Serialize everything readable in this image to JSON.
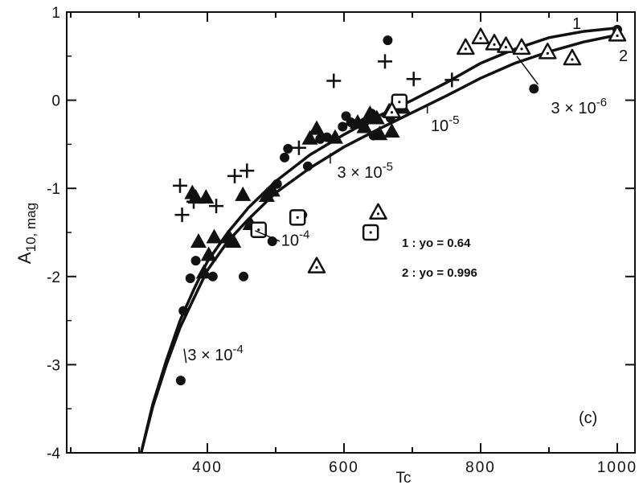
{
  "chart_data": {
    "type": "scatter",
    "xlabel": "Tc",
    "ylabel": "A10, mag",
    "ylabel_main": "A",
    "ylabel_sub": "10, mag",
    "xlim": [
      220,
      1000
    ],
    "ylim": [
      -4,
      1
    ],
    "xticks": [
      400,
      600,
      800,
      1000
    ],
    "yticks": [
      1,
      0,
      -1,
      -2,
      -3,
      -4
    ],
    "panel_label": "(c)",
    "legend": [
      "1 : yo = 0.64",
      "2 : yo = 0.996"
    ],
    "curve_labels": [
      "1",
      "2"
    ],
    "curves": [
      {
        "label": "1",
        "points": [
          [
            303,
            -4.0
          ],
          [
            320,
            -3.45
          ],
          [
            340,
            -2.95
          ],
          [
            360,
            -2.5
          ],
          [
            380,
            -2.15
          ],
          [
            400,
            -1.83
          ],
          [
            430,
            -1.5
          ],
          [
            460,
            -1.22
          ],
          [
            500,
            -0.92
          ],
          [
            550,
            -0.62
          ],
          [
            600,
            -0.39
          ],
          [
            650,
            -0.18
          ],
          [
            700,
            0.0
          ],
          [
            750,
            0.2
          ],
          [
            800,
            0.42
          ],
          [
            850,
            0.58
          ],
          [
            900,
            0.71
          ],
          [
            950,
            0.78
          ],
          [
            1000,
            0.82
          ]
        ]
      },
      {
        "label": "2",
        "points": [
          [
            303,
            -4.0
          ],
          [
            320,
            -3.48
          ],
          [
            340,
            -3.0
          ],
          [
            360,
            -2.58
          ],
          [
            380,
            -2.25
          ],
          [
            400,
            -1.93
          ],
          [
            430,
            -1.6
          ],
          [
            460,
            -1.35
          ],
          [
            500,
            -1.05
          ],
          [
            550,
            -0.77
          ],
          [
            600,
            -0.53
          ],
          [
            650,
            -0.33
          ],
          [
            700,
            -0.14
          ],
          [
            750,
            0.05
          ],
          [
            800,
            0.25
          ],
          [
            850,
            0.42
          ],
          [
            900,
            0.55
          ],
          [
            950,
            0.66
          ],
          [
            1000,
            0.74
          ]
        ]
      }
    ],
    "annotations": [
      {
        "base": "3 × 10",
        "exp": "-4",
        "x": 371,
        "y": -2.95
      },
      {
        "base": "10",
        "exp": "-4",
        "x": 508,
        "y": -1.65
      },
      {
        "base": "3 × 10",
        "exp": "-5",
        "x": 590,
        "y": -0.88
      },
      {
        "base": "10",
        "exp": "-5",
        "x": 727,
        "y": -0.35
      },
      {
        "base": "3 × 10",
        "exp": "-6",
        "x": 903,
        "y": -0.15
      }
    ],
    "annotation_lines": [
      {
        "label": "3 × 10-4",
        "from": [
          366,
          -2.82
        ],
        "to": [
          369,
          -2.98
        ]
      },
      {
        "label": "10-4",
        "from": [
          470,
          -1.48
        ],
        "to": [
          506,
          -1.6
        ]
      },
      {
        "label": "3 × 10-5",
        "from": [
          580,
          -0.6
        ],
        "to": [
          580,
          -0.72
        ]
      },
      {
        "label": "10-5",
        "from": [
          722,
          -0.05
        ],
        "to": [
          722,
          -0.15
        ]
      },
      {
        "label": "3 × 10-6",
        "from": [
          853,
          0.5
        ],
        "to": [
          884,
          0.18
        ]
      }
    ],
    "series": [
      {
        "marker": "filled-circle",
        "x": [
          361,
          365,
          375,
          383,
          408,
          453,
          475,
          495,
          502,
          513,
          518,
          539,
          547,
          565,
          575,
          598,
          603,
          610,
          630,
          640,
          643,
          664,
          668,
          682,
          878,
          1000
        ],
        "y": [
          -3.18,
          -2.39,
          -2.02,
          -1.82,
          -2.0,
          -2.0,
          -1.47,
          -1.6,
          -0.95,
          -0.65,
          -0.55,
          -1.3,
          -0.75,
          -0.44,
          -0.42,
          -0.3,
          -0.18,
          -0.25,
          -0.25,
          -0.15,
          -0.4,
          0.68,
          -0.2,
          -0.05,
          0.13,
          0.8
        ]
      },
      {
        "marker": "plus",
        "x": [
          360,
          363,
          380,
          413,
          440,
          458,
          534,
          585,
          633,
          660,
          702,
          758
        ],
        "y": [
          -0.97,
          -1.3,
          -1.15,
          -1.2,
          -0.86,
          -0.8,
          -0.54,
          0.22,
          -0.25,
          0.44,
          0.24,
          0.23
        ]
      },
      {
        "marker": "filled-triangle",
        "x": [
          378,
          383,
          387,
          395,
          398,
          402,
          410,
          432,
          438,
          452,
          463,
          487,
          495,
          550,
          560,
          587,
          620,
          630,
          638,
          648,
          652,
          666,
          670,
          686
        ],
        "y": [
          -1.05,
          -1.1,
          -1.6,
          -1.95,
          -1.1,
          -1.75,
          -1.55,
          -1.55,
          -1.6,
          -1.07,
          -1.4,
          -1.08,
          -1.02,
          -0.43,
          -0.32,
          -0.42,
          -0.25,
          -0.3,
          -0.15,
          -0.2,
          -0.38,
          -0.12,
          -0.35,
          -0.08
        ]
      },
      {
        "marker": "open-square",
        "x": [
          475,
          532,
          639,
          681
        ],
        "y": [
          -1.47,
          -1.33,
          -1.5,
          -0.02
        ]
      },
      {
        "marker": "open-triangle",
        "x": [
          560,
          650,
          670,
          778,
          800,
          820,
          837,
          860,
          898,
          934,
          1000
        ],
        "y": [
          -1.88,
          -1.27,
          -0.12,
          0.6,
          0.72,
          0.65,
          0.62,
          0.6,
          0.55,
          0.48,
          0.75
        ]
      }
    ]
  }
}
